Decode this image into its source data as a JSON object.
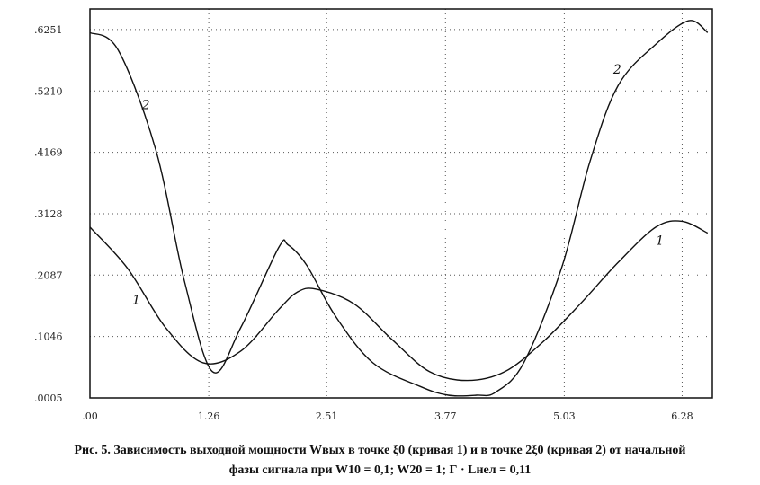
{
  "chart_data": {
    "type": "line",
    "title": "",
    "xlabel": "",
    "ylabel": "",
    "xlim": [
      0.0,
      6.6
    ],
    "ylim": [
      0.0005,
      0.66
    ],
    "x_ticks": [
      0.0,
      1.26,
      2.51,
      3.77,
      5.03,
      6.28
    ],
    "x_tick_labels": [
      ".00",
      "1.26",
      "2.51",
      "3.77",
      "5.03",
      "6.28"
    ],
    "y_ticks": [
      0.0005,
      0.1046,
      0.2087,
      0.3128,
      0.4169,
      0.521,
      0.6251
    ],
    "y_tick_labels": [
      ".0005",
      ".1046",
      ".2087",
      ".3128",
      ".4169",
      ".5210",
      ".6251"
    ],
    "grid": true,
    "series": [
      {
        "name": "1",
        "x": [
          0.0,
          0.4,
          0.8,
          1.2,
          1.6,
          2.0,
          2.2,
          2.4,
          2.8,
          3.2,
          3.6,
          4.0,
          4.4,
          4.8,
          5.2,
          5.6,
          6.0,
          6.28,
          6.55
        ],
        "y": [
          0.29,
          0.22,
          0.12,
          0.06,
          0.08,
          0.15,
          0.18,
          0.185,
          0.16,
          0.1,
          0.045,
          0.03,
          0.045,
          0.095,
          0.16,
          0.23,
          0.29,
          0.3,
          0.28
        ]
      },
      {
        "name": "2",
        "x": [
          0.0,
          0.3,
          0.7,
          1.0,
          1.3,
          1.6,
          2.0,
          2.1,
          2.3,
          2.6,
          3.0,
          3.5,
          3.8,
          4.1,
          4.3,
          4.6,
          5.0,
          5.3,
          5.6,
          6.0,
          6.35,
          6.55
        ],
        "y": [
          0.62,
          0.59,
          0.42,
          0.2,
          0.045,
          0.12,
          0.255,
          0.26,
          0.225,
          0.14,
          0.06,
          0.02,
          0.005,
          0.005,
          0.01,
          0.06,
          0.22,
          0.4,
          0.53,
          0.6,
          0.64,
          0.62
        ]
      }
    ],
    "annotations": [
      {
        "text": "2",
        "x": 0.55,
        "y": 0.49
      },
      {
        "text": "1",
        "x": 0.45,
        "y": 0.16
      },
      {
        "text": "2",
        "x": 5.55,
        "y": 0.55
      },
      {
        "text": "1",
        "x": 6.0,
        "y": 0.26
      }
    ]
  },
  "caption": {
    "line1": "Рис. 5. Зависимость выходной мощности Wвых в точке ξ0 (кривая 1) и в точке 2ξ0 (кривая 2) от начальной",
    "line2": "фазы сигнала при W10 = 0,1; W20 = 1; Г · Lнел = 0,11"
  }
}
